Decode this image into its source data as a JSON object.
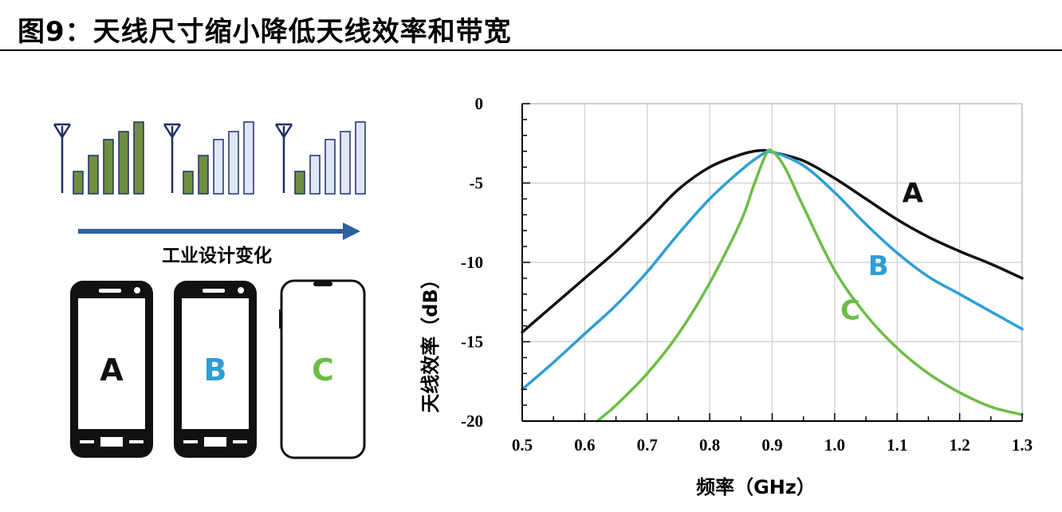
{
  "figure": {
    "title": "图9：天线尺寸缩小降低天线效率和带宽"
  },
  "illustration": {
    "arrow_label": "工业设计变化",
    "phones": [
      {
        "label": "A",
        "color": "#111111"
      },
      {
        "label": "B",
        "color": "#2e9ed6"
      },
      {
        "label": "C",
        "color": "#6cbd45"
      }
    ],
    "bar_groups": [
      {
        "filled": 5
      },
      {
        "filled": 2
      },
      {
        "filled": 1
      }
    ],
    "colors": {
      "bar_filled": "#6f8f3f",
      "bar_empty": "#dfe7f5",
      "bar_outline": "#1f2f6a",
      "arrow": "#2e5f9a"
    }
  },
  "chart_data": {
    "type": "line",
    "xlabel": "频率（GHz）",
    "ylabel": "天线效率（dB）",
    "xlim": [
      0.5,
      1.3
    ],
    "ylim": [
      -20,
      0
    ],
    "xticks": [
      "0.5",
      "0.6",
      "0.7",
      "0.8",
      "0.9",
      "1.0",
      "1.1",
      "1.2",
      "1.3"
    ],
    "yticks": [
      "0",
      "-5",
      "-10",
      "-15",
      "-20"
    ],
    "grid": true,
    "series": [
      {
        "name": "A",
        "color": "#111111",
        "x": [
          0.5,
          0.55,
          0.6,
          0.65,
          0.7,
          0.75,
          0.8,
          0.85,
          0.88,
          0.9,
          0.95,
          1.0,
          1.05,
          1.1,
          1.15,
          1.2,
          1.25,
          1.3
        ],
        "y": [
          -14.4,
          -12.7,
          -11.0,
          -9.3,
          -7.4,
          -5.4,
          -4.0,
          -3.2,
          -2.95,
          -3.05,
          -3.6,
          -4.7,
          -6.0,
          -7.3,
          -8.4,
          -9.3,
          -10.1,
          -11.0
        ]
      },
      {
        "name": "B",
        "color": "#2e9ed6",
        "x": [
          0.5,
          0.55,
          0.6,
          0.65,
          0.7,
          0.75,
          0.8,
          0.85,
          0.88,
          0.9,
          0.95,
          1.0,
          1.05,
          1.1,
          1.15,
          1.2,
          1.25,
          1.3
        ],
        "y": [
          -18.0,
          -16.3,
          -14.5,
          -12.7,
          -10.6,
          -8.2,
          -6.0,
          -4.2,
          -3.3,
          -3.05,
          -3.9,
          -5.6,
          -7.6,
          -9.4,
          -10.9,
          -12.0,
          -13.1,
          -14.2
        ]
      },
      {
        "name": "C",
        "color": "#6cbd45",
        "x": [
          0.62,
          0.65,
          0.7,
          0.75,
          0.8,
          0.85,
          0.87,
          0.89,
          0.9,
          0.92,
          0.95,
          1.0,
          1.05,
          1.1,
          1.15,
          1.2,
          1.25,
          1.3
        ],
        "y": [
          -20.0,
          -19.0,
          -17.0,
          -14.5,
          -11.3,
          -7.4,
          -5.2,
          -3.2,
          -3.0,
          -4.0,
          -6.5,
          -10.5,
          -13.3,
          -15.4,
          -17.0,
          -18.2,
          -19.1,
          -19.6
        ]
      }
    ]
  }
}
